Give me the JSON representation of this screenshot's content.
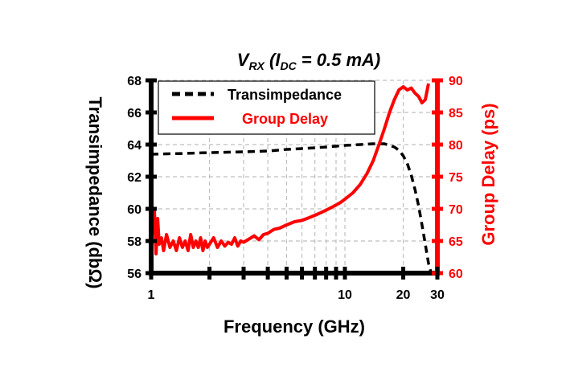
{
  "chart_data": {
    "type": "line",
    "title_main": "V",
    "title_main_sub": "RX",
    "title_open": " (I",
    "title_paren_sub": "DC",
    "title_rest": " = 0.5 mA)",
    "xlabel": "Frequency (GHz)",
    "ylabel_left": "Transimpedance (dbΩ)",
    "ylabel_right": "Group Delay (ps)",
    "xscale": "log",
    "xlim": [
      1,
      30
    ],
    "xticks": [
      1,
      10,
      20,
      30
    ],
    "xminor": [
      2,
      3,
      4,
      5,
      6,
      7,
      8,
      9
    ],
    "ylim_left": [
      56,
      68
    ],
    "yticks_left": [
      56,
      58,
      60,
      62,
      64,
      66,
      68
    ],
    "ylim_right": [
      60,
      90
    ],
    "yticks_right": [
      60,
      65,
      70,
      75,
      80,
      85,
      90
    ],
    "grid": true,
    "legend_position": "top-left",
    "colors": {
      "transimpedance": "#000000",
      "group_delay": "#ff0000",
      "grid": "#bfbfbf"
    },
    "series": [
      {
        "name": "Transimpedance",
        "axis": "left",
        "style": "dashed",
        "x": [
          1,
          1.5,
          2,
          3,
          4,
          5,
          6,
          7,
          8,
          9,
          10,
          12,
          14,
          16,
          18,
          19,
          20,
          21,
          22,
          23,
          24,
          25,
          26,
          27,
          28
        ],
        "y": [
          63.4,
          63.45,
          63.5,
          63.55,
          63.6,
          63.7,
          63.75,
          63.8,
          63.85,
          63.9,
          63.95,
          64.0,
          64.05,
          64.05,
          63.85,
          63.65,
          63.3,
          62.8,
          62.1,
          61.2,
          60.2,
          59.0,
          57.8,
          56.6,
          55.8
        ]
      },
      {
        "name": "Group Delay",
        "axis": "right",
        "style": "solid",
        "x": [
          1.02,
          1.04,
          1.06,
          1.08,
          1.1,
          1.13,
          1.16,
          1.2,
          1.25,
          1.3,
          1.35,
          1.4,
          1.45,
          1.5,
          1.55,
          1.6,
          1.65,
          1.7,
          1.75,
          1.8,
          1.85,
          1.9,
          1.95,
          2.0,
          2.1,
          2.2,
          2.3,
          2.4,
          2.5,
          2.6,
          2.7,
          2.8,
          2.9,
          3.0,
          3.2,
          3.4,
          3.6,
          3.8,
          4.0,
          4.3,
          4.6,
          5.0,
          5.5,
          6.0,
          6.5,
          7.0,
          7.5,
          8.0,
          8.5,
          9.0,
          9.5,
          10,
          11,
          12,
          13,
          14,
          15,
          16,
          17,
          18,
          19,
          20,
          21,
          22,
          23,
          24,
          25,
          26,
          27
        ],
        "y": [
          66,
          69.5,
          63,
          68.5,
          64.5,
          65.5,
          63.5,
          66,
          64,
          65,
          63.5,
          65.5,
          64,
          65,
          63.5,
          66,
          64,
          65,
          64,
          65.5,
          63.5,
          65,
          64,
          64.5,
          65.5,
          64,
          65,
          64.2,
          64.8,
          64.5,
          65.5,
          64.2,
          65,
          64.8,
          65.3,
          65.8,
          65.2,
          66,
          66.2,
          66.8,
          67,
          67.5,
          68,
          68.2,
          68.6,
          69,
          69.4,
          69.8,
          70.2,
          70.6,
          71,
          71.5,
          72.5,
          73.8,
          75.5,
          77.5,
          80,
          82.5,
          85,
          87,
          88.5,
          89,
          88.5,
          88.8,
          88,
          87.5,
          86.5,
          87,
          89.5
        ]
      }
    ]
  }
}
